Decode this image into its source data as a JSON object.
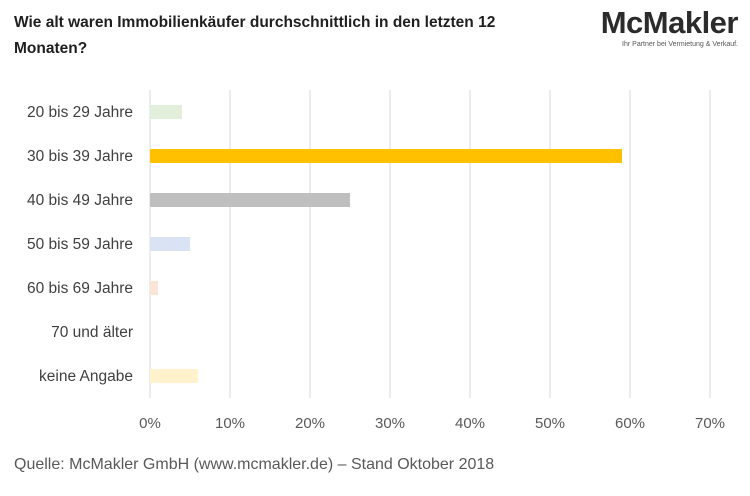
{
  "title": "Wie alt waren Immobilienkäufer durchschnittlich  in den letzten 12 Monaten?",
  "logo": {
    "name": "McMakler",
    "tagline": "Ihr Partner bei Vermietung & Verkauf."
  },
  "source": "Quelle: McMakler GmbH (www.mcmakler.de) – Stand Oktober 2018",
  "chart_data": {
    "type": "bar",
    "orientation": "horizontal",
    "categories": [
      "20 bis 29 Jahre",
      "30 bis 39 Jahre",
      "40 bis 49 Jahre",
      "50 bis 59 Jahre",
      "60 bis 69 Jahre",
      "70 und älter",
      "keine Angabe"
    ],
    "values": [
      4,
      59,
      25,
      5,
      1,
      0,
      6
    ],
    "colors": [
      "#e2efda",
      "#ffc000",
      "#bfbfbf",
      "#dae3f3",
      "#fbe5d6",
      "#ededed",
      "#fff2cc"
    ],
    "xticks": [
      "0%",
      "10%",
      "20%",
      "30%",
      "40%",
      "50%",
      "60%",
      "70%"
    ],
    "xlim": [
      0,
      70
    ],
    "grid": true,
    "legend": "none"
  }
}
